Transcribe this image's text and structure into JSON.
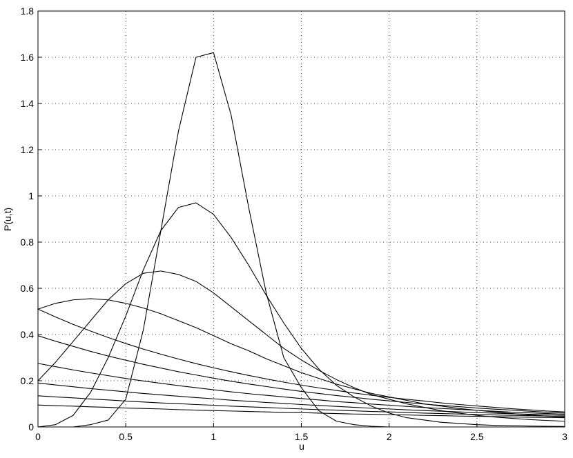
{
  "chart_data": {
    "type": "line",
    "xlabel": "u",
    "ylabel": "P(u,t)",
    "x": [
      0,
      0.1,
      0.2,
      0.3,
      0.4,
      0.5,
      0.6,
      0.7,
      0.8,
      0.9,
      1,
      1.1,
      1.2,
      1.3,
      1.4,
      1.5,
      1.6,
      1.7,
      1.8,
      1.9,
      2,
      2.1,
      2.2,
      2.3,
      2.4,
      2.5,
      2.6,
      2.7,
      2.8,
      2.9,
      3
    ],
    "series": [
      {
        "color": "#000000",
        "values": [
          0,
          0,
          0,
          0.01,
          0.03,
          0.12,
          0.42,
          0.85,
          1.28,
          1.6,
          1.62,
          1.35,
          0.95,
          0.58,
          0.3,
          0.17,
          0.07,
          0.025,
          0.01,
          0.003,
          0,
          0,
          0,
          0,
          0,
          0,
          0,
          0,
          0,
          0,
          0
        ]
      },
      {
        "color": "#000000",
        "values": [
          0,
          0.01,
          0.05,
          0.15,
          0.3,
          0.48,
          0.68,
          0.85,
          0.95,
          0.97,
          0.92,
          0.82,
          0.7,
          0.57,
          0.45,
          0.34,
          0.25,
          0.18,
          0.13,
          0.09,
          0.06,
          0.04,
          0.03,
          0.02,
          0.015,
          0.01,
          0.007,
          0.005,
          0.004,
          0.003,
          0.002
        ]
      },
      {
        "color": "#000000",
        "values": [
          0.2,
          0.28,
          0.37,
          0.46,
          0.55,
          0.62,
          0.665,
          0.675,
          0.66,
          0.63,
          0.58,
          0.52,
          0.46,
          0.4,
          0.34,
          0.29,
          0.245,
          0.205,
          0.17,
          0.14,
          0.12,
          0.1,
          0.085,
          0.07,
          0.06,
          0.05,
          0.043,
          0.037,
          0.032,
          0.028,
          0.025
        ]
      },
      {
        "color": "#000000",
        "values": [
          0.51,
          0.535,
          0.55,
          0.555,
          0.55,
          0.535,
          0.515,
          0.49,
          0.46,
          0.43,
          0.395,
          0.36,
          0.33,
          0.295,
          0.265,
          0.235,
          0.21,
          0.185,
          0.165,
          0.145,
          0.13,
          0.115,
          0.1,
          0.09,
          0.08,
          0.072,
          0.065,
          0.058,
          0.052,
          0.047,
          0.043
        ]
      },
      {
        "color": "#000000",
        "values": [
          0.51,
          0.476,
          0.444,
          0.415,
          0.387,
          0.361,
          0.337,
          0.315,
          0.294,
          0.274,
          0.256,
          0.239,
          0.223,
          0.208,
          0.194,
          0.181,
          0.169,
          0.158,
          0.147,
          0.137,
          0.128,
          0.12,
          0.112,
          0.104,
          0.097,
          0.091,
          0.085,
          0.079,
          0.074,
          0.069,
          0.065
        ]
      },
      {
        "color": "#000000",
        "values": [
          0.395,
          0.371,
          0.349,
          0.327,
          0.307,
          0.289,
          0.271,
          0.255,
          0.239,
          0.225,
          0.211,
          0.198,
          0.186,
          0.175,
          0.164,
          0.154,
          0.145,
          0.136,
          0.128,
          0.12,
          0.113,
          0.106,
          0.099,
          0.093,
          0.088,
          0.082,
          0.077,
          0.073,
          0.068,
          0.064,
          0.06
        ]
      },
      {
        "color": "#000000",
        "values": [
          0.275,
          0.261,
          0.247,
          0.234,
          0.222,
          0.21,
          0.199,
          0.189,
          0.179,
          0.17,
          0.161,
          0.152,
          0.144,
          0.137,
          0.13,
          0.123,
          0.117,
          0.11,
          0.105,
          0.099,
          0.094,
          0.089,
          0.084,
          0.08,
          0.076,
          0.072,
          0.068,
          0.064,
          0.061,
          0.058,
          0.055
        ]
      },
      {
        "color": "#000000",
        "values": [
          0.19,
          0.182,
          0.174,
          0.166,
          0.159,
          0.152,
          0.145,
          0.139,
          0.133,
          0.127,
          0.122,
          0.116,
          0.111,
          0.106,
          0.102,
          0.097,
          0.093,
          0.089,
          0.085,
          0.081,
          0.078,
          0.074,
          0.071,
          0.068,
          0.065,
          0.062,
          0.06,
          0.057,
          0.055,
          0.052,
          0.05
        ]
      },
      {
        "color": "#000000",
        "values": [
          0.135,
          0.13,
          0.126,
          0.121,
          0.117,
          0.112,
          0.108,
          0.104,
          0.101,
          0.097,
          0.094,
          0.09,
          0.087,
          0.084,
          0.081,
          0.078,
          0.075,
          0.073,
          0.07,
          0.067,
          0.065,
          0.063,
          0.06,
          0.058,
          0.056,
          0.054,
          0.052,
          0.05,
          0.049,
          0.047,
          0.045
        ]
      },
      {
        "color": "#000000",
        "values": [
          0.095,
          0.092,
          0.09,
          0.087,
          0.085,
          0.082,
          0.08,
          0.078,
          0.075,
          0.073,
          0.071,
          0.069,
          0.067,
          0.065,
          0.063,
          0.062,
          0.06,
          0.058,
          0.056,
          0.055,
          0.053,
          0.052,
          0.05,
          0.049,
          0.047,
          0.046,
          0.045,
          0.043,
          0.042,
          0.041,
          0.04
        ]
      }
    ],
    "xlim": [
      0,
      3
    ],
    "xticks": [
      0,
      0.5,
      1,
      1.5,
      2,
      2.5,
      3
    ],
    "ylim": [
      0,
      1.8
    ],
    "yticks": [
      0,
      0.2,
      0.4,
      0.6,
      0.8,
      1,
      1.2,
      1.4,
      1.6,
      1.8
    ],
    "grid": true
  }
}
